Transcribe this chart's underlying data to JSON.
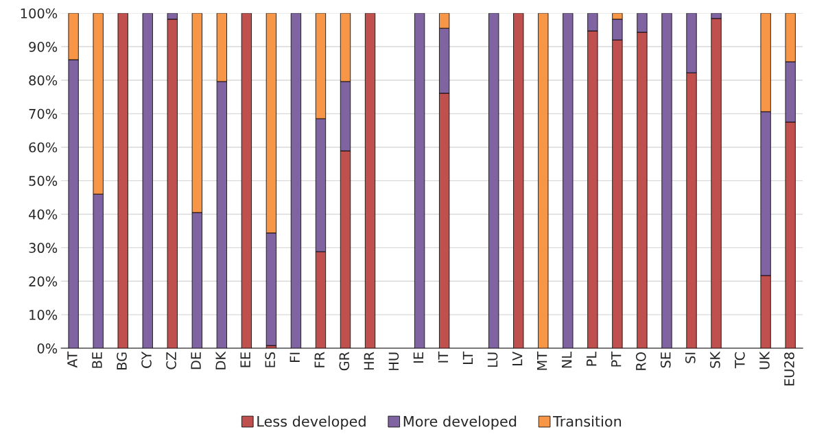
{
  "chart_data": {
    "type": "bar",
    "stacked": true,
    "categories": [
      "AT",
      "BE",
      "BG",
      "CY",
      "CZ",
      "DE",
      "DK",
      "EE",
      "ES",
      "FI",
      "FR",
      "GR",
      "HR",
      "HU",
      "IE",
      "IT",
      "LT",
      "LU",
      "LV",
      "MT",
      "NL",
      "PL",
      "PT",
      "RO",
      "SE",
      "SI",
      "SK",
      "TC",
      "UK",
      "EU28"
    ],
    "series": [
      {
        "name": "Less developed",
        "color": "#c0504d",
        "values": [
          0,
          0,
          100,
          0,
          98.2,
          0,
          0,
          100,
          0.8,
          0,
          28.8,
          58.9,
          100,
          0,
          0,
          76.1,
          0,
          0,
          100,
          0,
          0,
          94.7,
          92.0,
          94.3,
          0,
          82.2,
          98.4,
          0,
          21.7,
          67.5
        ]
      },
      {
        "name": "More developed",
        "color": "#8064a2",
        "values": [
          86.1,
          46.0,
          0,
          100,
          1.8,
          40.5,
          79.6,
          0,
          33.6,
          100,
          39.7,
          20.7,
          0,
          0,
          100,
          19.4,
          0,
          100,
          0,
          0,
          100,
          5.3,
          6.2,
          5.7,
          100,
          17.8,
          1.6,
          0,
          48.9,
          18.0
        ]
      },
      {
        "name": "Transition",
        "color": "#f79646",
        "values": [
          13.9,
          54.0,
          0,
          0,
          0,
          59.5,
          20.4,
          0,
          65.6,
          0,
          31.5,
          20.4,
          0,
          0,
          0,
          4.5,
          0,
          0,
          0,
          100,
          0,
          0,
          1.8,
          0,
          0,
          0,
          0,
          0,
          29.4,
          14.5
        ]
      }
    ],
    "ylim": [
      0,
      100
    ],
    "yticks": [
      {
        "value": 0,
        "label": "0%"
      },
      {
        "value": 10,
        "label": "10%"
      },
      {
        "value": 20,
        "label": "20%"
      },
      {
        "value": 30,
        "label": "30%"
      },
      {
        "value": 40,
        "label": "40%"
      },
      {
        "value": 50,
        "label": "50%"
      },
      {
        "value": 60,
        "label": "60%"
      },
      {
        "value": 70,
        "label": "70%"
      },
      {
        "value": 80,
        "label": "80%"
      },
      {
        "value": 90,
        "label": "90%"
      },
      {
        "value": 100,
        "label": "100%"
      }
    ],
    "grid": "y",
    "legend": "bottom"
  }
}
